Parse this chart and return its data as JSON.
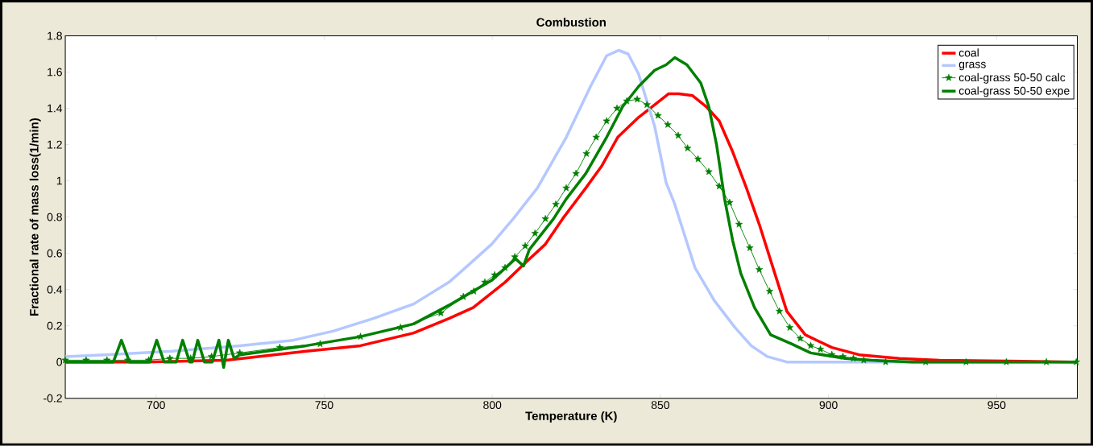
{
  "chart_data": {
    "type": "line",
    "title": "Combustion",
    "xlabel": "Temperature (K)",
    "ylabel": "Fractional rate of mass loss(1/min)",
    "xlim": [
      673,
      974
    ],
    "ylim": [
      -0.2,
      1.8
    ],
    "xticks": [
      700,
      750,
      800,
      850,
      900,
      950
    ],
    "yticks": [
      -0.2,
      0,
      0.2,
      0.4,
      0.6,
      0.8,
      1,
      1.2,
      1.4,
      1.6,
      1.8
    ],
    "legend": "top right",
    "grid": false,
    "series": [
      {
        "name": "coal",
        "color": "#ff0000",
        "x": [
          673.0,
          696.9,
          720.8,
          744.7,
          760.8,
          776.6,
          787.1,
          794.3,
          803.8,
          810.0,
          815.8,
          821.3,
          827.8,
          832.5,
          837.3,
          843.5,
          848.3,
          852.4,
          855.5,
          859.6,
          863.6,
          867.5,
          871.5,
          875.6,
          879.4,
          883.5,
          887.6,
          893.1,
          901.0,
          909.1,
          921.1,
          933.0,
          973.7
        ],
        "values": [
          0,
          0,
          0.01,
          0.06,
          0.09,
          0.16,
          0.24,
          0.3,
          0.44,
          0.55,
          0.65,
          0.8,
          0.96,
          1.08,
          1.24,
          1.35,
          1.42,
          1.48,
          1.48,
          1.47,
          1.41,
          1.33,
          1.16,
          0.96,
          0.76,
          0.52,
          0.28,
          0.15,
          0.08,
          0.04,
          0.02,
          0.01,
          0
        ]
      },
      {
        "name": "grass",
        "color": "#b4c8ff",
        "x": [
          673.0,
          684.9,
          704.8,
          724.9,
          740.7,
          752.6,
          764.6,
          776.6,
          787.1,
          792.6,
          799.8,
          806.2,
          813.4,
          822.0,
          829.2,
          834.0,
          837.6,
          840.4,
          843.5,
          848.3,
          851.7,
          854.1,
          856.5,
          860.3,
          866.0,
          872.2,
          877.0,
          881.8,
          887.6,
          973.7
        ],
        "values": [
          0.03,
          0.04,
          0.06,
          0.09,
          0.12,
          0.17,
          0.24,
          0.32,
          0.44,
          0.53,
          0.65,
          0.79,
          0.96,
          1.24,
          1.52,
          1.69,
          1.72,
          1.7,
          1.59,
          1.3,
          0.99,
          0.88,
          0.74,
          0.52,
          0.34,
          0.19,
          0.09,
          0.03,
          0,
          0
        ]
      },
      {
        "name": "coal-grass 50-50 calc",
        "color": "#008000",
        "marker": "star",
        "x": [
          673.0,
          679.2,
          685.4,
          691.6,
          697.8,
          704.1,
          710.3,
          716.5,
          724.9,
          736.8,
          748.8,
          760.8,
          772.7,
          784.7,
          791.4,
          794.5,
          797.8,
          800.7,
          803.8,
          806.7,
          809.8,
          812.7,
          815.8,
          818.9,
          822.0,
          824.9,
          828.0,
          830.9,
          834.0,
          837.1,
          840.0,
          843.1,
          846.0,
          849.3,
          852.2,
          855.3,
          858.1,
          861.2,
          864.4,
          867.5,
          870.6,
          873.4,
          876.6,
          879.4,
          882.5,
          885.4,
          888.5,
          891.6,
          894.7,
          897.6,
          901.0,
          904.3,
          907.4,
          910.5,
          917.0,
          928.9,
          940.9,
          952.9,
          964.8,
          973.7
        ],
        "values": [
          0.01,
          0.01,
          0.01,
          0.01,
          0.01,
          0.02,
          0.02,
          0.03,
          0.05,
          0.08,
          0.1,
          0.14,
          0.19,
          0.27,
          0.36,
          0.39,
          0.44,
          0.48,
          0.52,
          0.58,
          0.64,
          0.71,
          0.79,
          0.87,
          0.96,
          1.04,
          1.15,
          1.24,
          1.33,
          1.4,
          1.44,
          1.45,
          1.42,
          1.36,
          1.31,
          1.25,
          1.18,
          1.12,
          1.05,
          0.97,
          0.88,
          0.76,
          0.63,
          0.51,
          0.39,
          0.28,
          0.19,
          0.13,
          0.09,
          0.07,
          0.04,
          0.03,
          0.02,
          0.01,
          0,
          0,
          0,
          0,
          0,
          0
        ]
      },
      {
        "name": "coal-grass 50-50 expe",
        "color": "#008000",
        "x": [
          673.0,
          687.3,
          689.7,
          692.1,
          698.1,
          700.2,
          702.4,
          706.0,
          707.9,
          710.0,
          710.8,
          712.4,
          714.4,
          716.7,
          718.7,
          720.1,
          721.5,
          723.2,
          724.9,
          744.7,
          760.8,
          776.6,
          787.8,
          799.8,
          806.9,
          809.3,
          811.0,
          818.2,
          822.0,
          827.8,
          834.0,
          838.8,
          843.5,
          848.3,
          851.7,
          854.3,
          857.9,
          862.0,
          864.4,
          866.7,
          869.1,
          871.5,
          873.9,
          878.0,
          882.8,
          889.0,
          894.7,
          905.0,
          912.9,
          924.9,
          973.7
        ],
        "values": [
          0,
          0,
          0.12,
          0,
          0,
          0.12,
          0,
          0,
          0.12,
          0,
          0,
          0.12,
          0,
          0,
          0.12,
          -0.03,
          0.12,
          0.02,
          0.04,
          0.09,
          0.14,
          0.21,
          0.32,
          0.45,
          0.57,
          0.53,
          0.62,
          0.79,
          0.9,
          1.04,
          1.24,
          1.41,
          1.52,
          1.61,
          1.64,
          1.68,
          1.64,
          1.54,
          1.41,
          1.2,
          0.9,
          0.67,
          0.49,
          0.3,
          0.15,
          0.1,
          0.05,
          0.02,
          0.01,
          0,
          0
        ]
      }
    ]
  }
}
